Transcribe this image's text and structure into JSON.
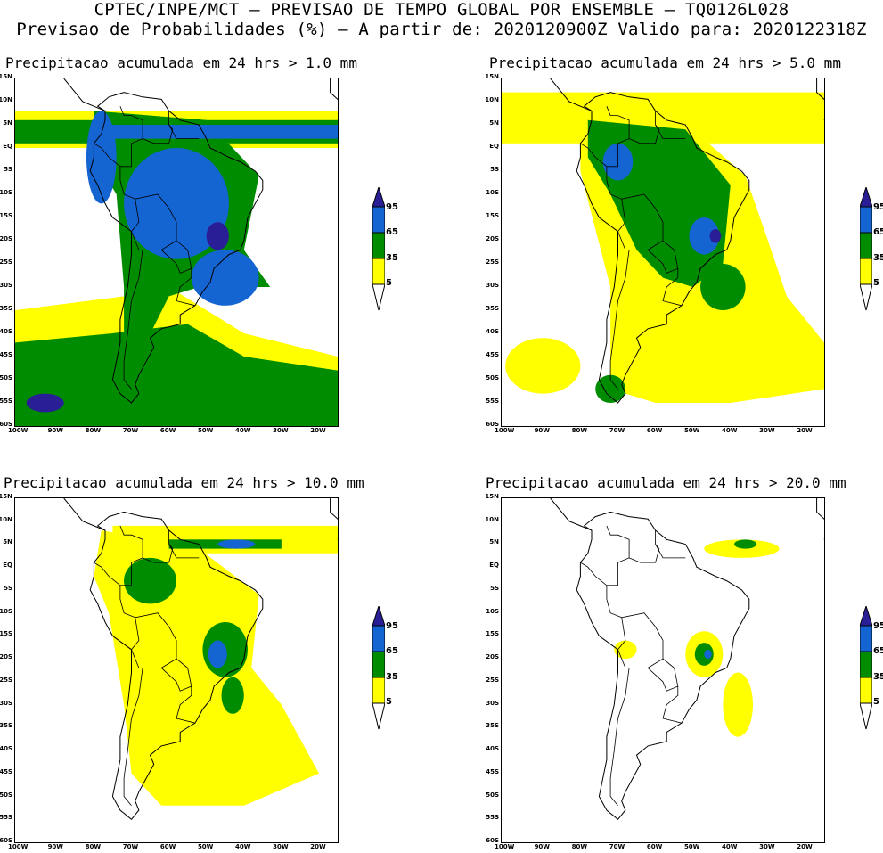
{
  "header": {
    "line1": "CPTEC/INPE/MCT – PREVISAO DE TEMPO GLOBAL POR ENSEMBLE – TQ0126L028",
    "line2": "Previsao de Probabilidades (%) –  A partir de: 2020120900Z  Valido para: 2020122318Z"
  },
  "colors": {
    "c5": "#ffff00",
    "c35": "#008c00",
    "c65": "#1464d2",
    "c95": "#2a1e96",
    "land_line": "#000000",
    "background": "#ffffff"
  },
  "axes": {
    "lat_labels": [
      "15N",
      "10N",
      "5N",
      "EQ",
      "5S",
      "10S",
      "15S",
      "20S",
      "25S",
      "30S",
      "35S",
      "40S",
      "45S",
      "50S",
      "55S",
      "60S"
    ],
    "lon_labels": [
      "100W",
      "90W",
      "80W",
      "70W",
      "60W",
      "50W",
      "40W",
      "30W",
      "20W"
    ]
  },
  "legend": {
    "labels": [
      "95",
      "65",
      "35",
      "5"
    ]
  },
  "panels": [
    {
      "title": "Precipitacao acumulada em 24 hrs > 1.0 mm",
      "threshold_mm": 1.0,
      "intensity": 4
    },
    {
      "title": "Precipitacao acumulada em 24 hrs > 5.0 mm",
      "threshold_mm": 5.0,
      "intensity": 3
    },
    {
      "title": "Precipitacao acumulada em 24 hrs > 10.0 mm",
      "threshold_mm": 10.0,
      "intensity": 2
    },
    {
      "title": "Precipitacao acumulada em 24 hrs > 20.0 mm",
      "threshold_mm": 20.0,
      "intensity": 1
    }
  ]
}
